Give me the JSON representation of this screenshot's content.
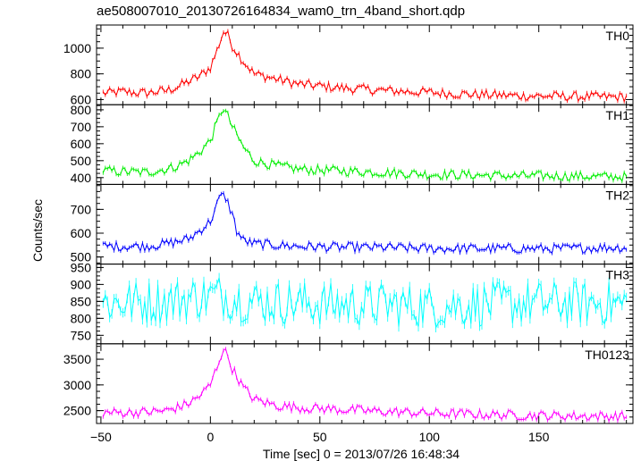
{
  "chart_data": {
    "type": "line",
    "title": "ae508007010_20130726164834_wam0_trn_4band_short.qdp",
    "xlabel": "Time [sec] 0 = 2013/07/26 16:48:34",
    "ylabel": "Counts/sec",
    "xlim": [
      -52,
      193
    ],
    "x_ticks": [
      -50,
      0,
      50,
      100,
      150
    ],
    "x_step": 1,
    "panels": [
      {
        "name": "TH0",
        "color": "#ff0000",
        "ylim": [
          560,
          1180
        ],
        "y_ticks": [
          600,
          800,
          1000
        ],
        "x": [
          -48,
          -40,
          -30,
          -20,
          -15,
          -10,
          -5,
          0,
          3,
          5,
          6,
          8,
          10,
          15,
          20,
          30,
          40,
          60,
          80,
          100,
          120,
          140,
          160,
          180,
          190
        ],
        "y": [
          650,
          660,
          650,
          670,
          700,
          740,
          780,
          850,
          980,
          1080,
          1130,
          1100,
          1020,
          900,
          800,
          760,
          720,
          690,
          670,
          655,
          640,
          630,
          625,
          620,
          620
        ]
      },
      {
        "name": "TH1",
        "color": "#00ee00",
        "ylim": [
          360,
          830
        ],
        "y_ticks": [
          400,
          500,
          600,
          700,
          800
        ],
        "x": [
          -48,
          -30,
          -20,
          -15,
          -10,
          -5,
          0,
          3,
          5,
          6,
          8,
          10,
          15,
          20,
          30,
          40,
          60,
          80,
          100,
          120,
          140,
          160,
          180,
          190
        ],
        "y": [
          440,
          430,
          450,
          470,
          500,
          550,
          620,
          720,
          790,
          810,
          760,
          700,
          580,
          500,
          470,
          450,
          440,
          430,
          420,
          415,
          410,
          410,
          405,
          405
        ]
      },
      {
        "name": "TH2",
        "color": "#0000ff",
        "ylim": [
          470,
          805
        ],
        "y_ticks": [
          500,
          600,
          700
        ],
        "x": [
          -48,
          -30,
          -20,
          -10,
          -5,
          0,
          3,
          5,
          7,
          10,
          12,
          15,
          20,
          40,
          60,
          80,
          100,
          120,
          140,
          160,
          180,
          190
        ],
        "y": [
          545,
          545,
          555,
          575,
          610,
          650,
          720,
          760,
          750,
          680,
          610,
          570,
          555,
          545,
          540,
          540,
          535,
          535,
          535,
          535,
          540,
          540
        ]
      },
      {
        "name": "TH3",
        "color": "#00ffff",
        "ylim": [
          725,
          960
        ],
        "y_ticks": [
          750,
          800,
          850,
          900,
          950
        ],
        "x": [
          -48,
          -20,
          -10,
          0,
          5,
          10,
          20,
          40,
          60,
          80,
          100,
          120,
          140,
          160,
          180,
          190
        ],
        "y": [
          845,
          850,
          860,
          865,
          870,
          860,
          850,
          845,
          840,
          840,
          835,
          840,
          845,
          845,
          845,
          840
        ]
      },
      {
        "name": "TH0123",
        "color": "#ff00ff",
        "ylim": [
          2250,
          3800
        ],
        "y_ticks": [
          2500,
          3000,
          3500
        ],
        "x": [
          -48,
          -30,
          -20,
          -15,
          -10,
          -5,
          0,
          3,
          5,
          6,
          8,
          10,
          15,
          20,
          30,
          40,
          60,
          80,
          100,
          120,
          140,
          160,
          180,
          190
        ],
        "y": [
          2460,
          2470,
          2500,
          2560,
          2640,
          2780,
          3000,
          3350,
          3600,
          3700,
          3550,
          3320,
          2950,
          2720,
          2600,
          2560,
          2520,
          2480,
          2450,
          2430,
          2410,
          2400,
          2390,
          2390
        ]
      }
    ]
  }
}
